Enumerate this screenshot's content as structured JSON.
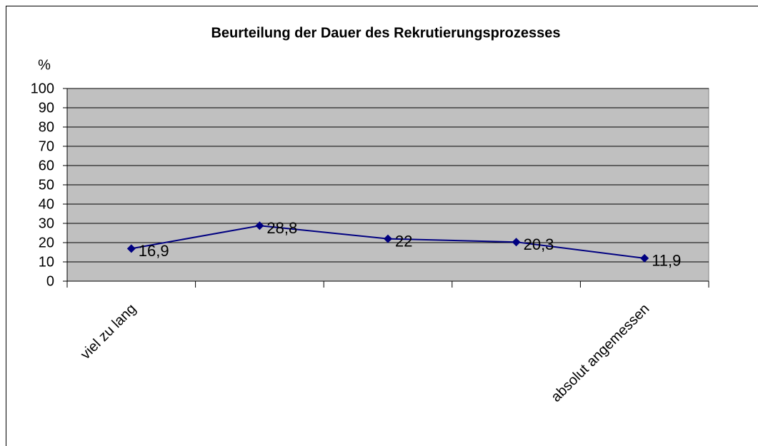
{
  "chart_data": {
    "type": "line",
    "title": "Beurteilung der Dauer des Rekrutierungsprozesses",
    "y_axis_label": "%",
    "categories": [
      "viel zu lang",
      null,
      null,
      null,
      "absolut angemessen"
    ],
    "series": [
      {
        "name": "Beurteilung",
        "color": "#000080",
        "values": [
          16.9,
          28.8,
          22,
          20.3,
          11.9
        ],
        "value_labels": [
          "16,9",
          "28,8",
          "22",
          "20,3",
          "11,9"
        ]
      }
    ],
    "ylim": [
      0,
      100
    ],
    "yticks": [
      0,
      10,
      20,
      30,
      40,
      50,
      60,
      70,
      80,
      90,
      100
    ],
    "grid": true,
    "plot_background": "#c0c0c0",
    "legend": false
  }
}
